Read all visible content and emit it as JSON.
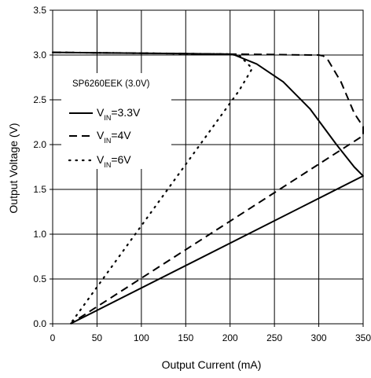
{
  "chart_data": {
    "type": "line",
    "annotation": "SP6260EEK  (3.0V)",
    "xlabel": "Output Current (mA)",
    "ylabel": "Output Voltage (V)",
    "xlim": [
      0,
      350
    ],
    "ylim": [
      0.0,
      3.5
    ],
    "xticks": [
      0,
      50,
      100,
      150,
      200,
      250,
      300,
      350
    ],
    "yticks": [
      0.0,
      0.5,
      1.0,
      1.5,
      2.0,
      2.5,
      3.0,
      3.5
    ],
    "ytick_labels": [
      "0.0",
      "0.5",
      "1.0",
      "1.5",
      "2.0",
      "2.5",
      "3.0",
      "3.5"
    ],
    "grid": true,
    "legend_position": "upper-left",
    "series": [
      {
        "name_main": "V",
        "name_sub": "IN",
        "name_suffix": "=3.3V",
        "dash": "solid",
        "x": [
          0,
          50,
          100,
          150,
          200,
          205,
          230,
          260,
          290,
          320,
          340,
          350,
          350,
          20
        ],
        "y": [
          3.03,
          3.025,
          3.02,
          3.015,
          3.01,
          3.0,
          2.9,
          2.7,
          2.4,
          2.0,
          1.75,
          1.65,
          1.65,
          0.0
        ]
      },
      {
        "name_main": "V",
        "name_sub": "IN",
        "name_suffix": "=4V",
        "dash": "dashed",
        "x": [
          0,
          50,
          100,
          150,
          200,
          250,
          290,
          300,
          305,
          310,
          325,
          340,
          350,
          350,
          20
        ],
        "y": [
          3.03,
          3.025,
          3.02,
          3.015,
          3.01,
          3.005,
          3.0,
          3.0,
          2.99,
          2.95,
          2.7,
          2.35,
          2.2,
          2.1,
          0.0
        ]
      },
      {
        "name_main": "V",
        "name_sub": "IN",
        "name_suffix": "=6V",
        "dash": "dotted",
        "x": [
          0,
          50,
          100,
          150,
          200,
          210,
          220,
          225,
          210,
          20
        ],
        "y": [
          3.03,
          3.025,
          3.02,
          3.015,
          3.01,
          3.0,
          2.9,
          2.85,
          2.6,
          0.0
        ]
      }
    ]
  }
}
